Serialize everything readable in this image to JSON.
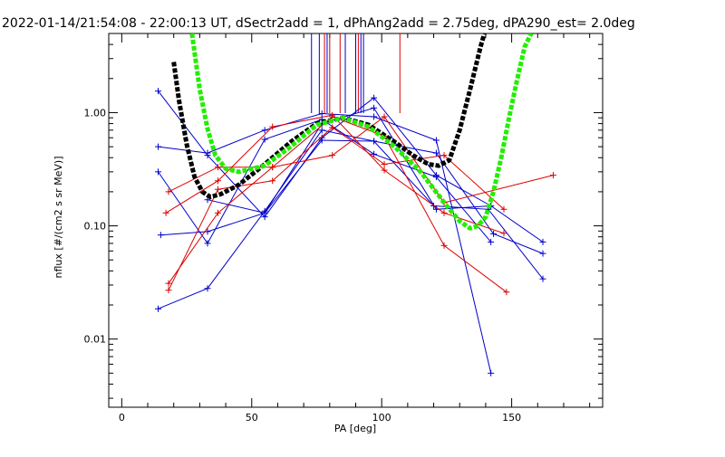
{
  "chart_data": {
    "type": "line",
    "title": "2022-01-14/21:54:08 - 22:00:13 UT, dSectr2add = 1, dPhAng2add = 2.75deg, dPA290_est=   2.0deg",
    "xlabel": "PA [deg]",
    "ylabel": "nflux [#/(cm2 s sr MeV)]",
    "xlim": [
      -5,
      185
    ],
    "ylim": [
      0.0025,
      5
    ],
    "yscale": "log",
    "x_ticks": [
      0,
      50,
      100,
      150
    ],
    "x_tick_labels": [
      "0",
      "50",
      "100",
      "150"
    ],
    "y_ticks": [
      0.01,
      0.1,
      1.0
    ],
    "y_tick_labels": [
      "0.01",
      "0.10",
      "1.00"
    ],
    "colors": {
      "blue": "#0000cc",
      "red": "#dd0000",
      "black": "#000000",
      "green": "#22ee00"
    },
    "vertical_markers": {
      "blue": [
        73,
        76,
        79,
        86,
        90,
        92,
        93
      ],
      "red": [
        78,
        80,
        84,
        91,
        107
      ]
    },
    "series": [
      {
        "color": "blue",
        "x": [
          14,
          33,
          55,
          77,
          97,
          121,
          142
        ],
        "y": [
          1.55,
          0.42,
          0.12,
          0.6,
          1.35,
          0.28,
          0.15
        ]
      },
      {
        "color": "blue",
        "x": [
          14,
          33,
          55,
          77,
          97,
          121,
          142
        ],
        "y": [
          0.5,
          0.44,
          0.7,
          0.98,
          0.92,
          0.57,
          0.005
        ]
      },
      {
        "color": "blue",
        "x": [
          14,
          33,
          55,
          77,
          97,
          121,
          142
        ],
        "y": [
          0.3,
          0.07,
          0.58,
          0.87,
          0.43,
          0.27,
          0.072
        ]
      },
      {
        "color": "blue",
        "x": [
          15,
          33,
          55,
          77,
          97,
          121,
          142,
          162
        ],
        "y": [
          0.083,
          0.089,
          0.13,
          0.8,
          1.1,
          0.14,
          0.15,
          0.072
        ]
      },
      {
        "color": "blue",
        "x": [
          14,
          33,
          55,
          77,
          97,
          121,
          143,
          162
        ],
        "y": [
          0.0185,
          0.028,
          0.135,
          0.7,
          0.56,
          0.44,
          0.085,
          0.057
        ]
      },
      {
        "color": "blue",
        "x": [
          33,
          55,
          77,
          97,
          120,
          141,
          162
        ],
        "y": [
          0.17,
          0.13,
          0.57,
          0.56,
          0.15,
          0.14,
          0.034
        ]
      },
      {
        "color": "red",
        "x": [
          17,
          37,
          58,
          81,
          101,
          124,
          147
        ],
        "y": [
          0.13,
          0.25,
          0.75,
          0.95,
          0.31,
          0.13,
          0.086
        ]
      },
      {
        "color": "red",
        "x": [
          18,
          37,
          58,
          81,
          101,
          124,
          148
        ],
        "y": [
          0.031,
          0.13,
          0.33,
          0.92,
          0.62,
          0.067,
          0.026
        ]
      },
      {
        "color": "red",
        "x": [
          18,
          37,
          58,
          81,
          101,
          124,
          147
        ],
        "y": [
          0.027,
          0.21,
          0.25,
          0.74,
          0.35,
          0.42,
          0.14
        ]
      },
      {
        "color": "red",
        "x": [
          18,
          37,
          58,
          81,
          101,
          124,
          166
        ],
        "y": [
          0.2,
          0.33,
          0.33,
          0.42,
          0.92,
          0.16,
          0.28
        ]
      }
    ],
    "fit_curves": [
      {
        "color": "black",
        "style": "dashed-thick",
        "x": [
          20,
          22,
          25,
          28,
          31,
          34,
          38,
          45,
          55,
          65,
          75,
          85,
          95,
          105,
          112,
          118,
          122,
          126,
          130,
          134,
          138,
          139.5
        ],
        "y": [
          2.8,
          1.3,
          0.52,
          0.27,
          0.2,
          0.18,
          0.19,
          0.23,
          0.35,
          0.55,
          0.8,
          0.9,
          0.78,
          0.55,
          0.42,
          0.35,
          0.34,
          0.38,
          0.7,
          1.6,
          3.8,
          5
        ]
      },
      {
        "color": "green",
        "style": "dashed-thick",
        "x": [
          27,
          30,
          33,
          36,
          40,
          45,
          55,
          65,
          75,
          85,
          95,
          105,
          115,
          125,
          130,
          134,
          137,
          140,
          143,
          146,
          149,
          152,
          155,
          157.5
        ],
        "y": [
          5,
          1.6,
          0.72,
          0.42,
          0.32,
          0.3,
          0.34,
          0.5,
          0.78,
          0.9,
          0.75,
          0.5,
          0.3,
          0.15,
          0.11,
          0.095,
          0.1,
          0.12,
          0.2,
          0.4,
          0.9,
          1.9,
          3.8,
          5
        ]
      }
    ]
  }
}
